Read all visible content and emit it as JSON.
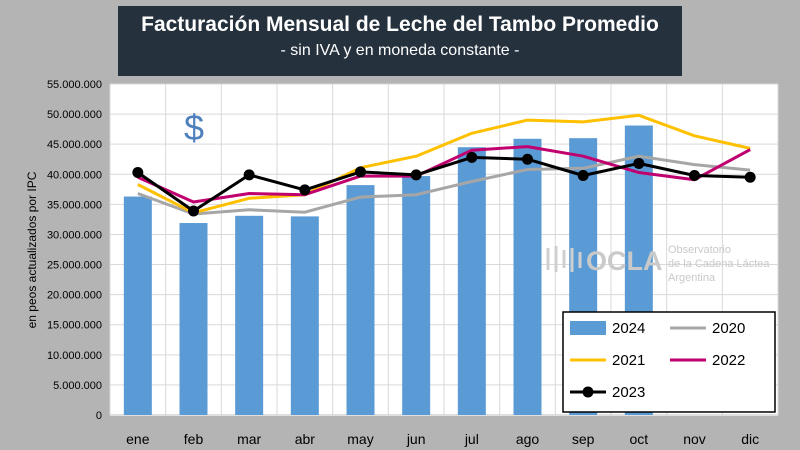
{
  "header": {
    "title": "Facturación Mensual de Leche del Tambo Promedio",
    "subtitle": "- sin IVA y en moneda constante -"
  },
  "watermark": {
    "name": "OCLA",
    "line1": "Observatorio",
    "line2": "de la Cadena Láctea",
    "line3": "Argentina"
  },
  "symbol": "$",
  "chart_data": {
    "type": "bar+line",
    "ylabel": "en peos actualizados por IPC",
    "ylim": [
      0,
      55000000
    ],
    "ytick_values": [
      0,
      5000000,
      10000000,
      15000000,
      20000000,
      25000000,
      30000000,
      35000000,
      40000000,
      45000000,
      50000000,
      55000000
    ],
    "ytick_labels": [
      "0",
      "5.000.000",
      "10.000.000",
      "15.000.000",
      "20.000.000",
      "25.000.000",
      "30.000.000",
      "35.000.000",
      "40.000.000",
      "45.000.000",
      "50.000.000",
      "55.000.000"
    ],
    "categories": [
      "ene",
      "feb",
      "mar",
      "abr",
      "may",
      "jun",
      "jul",
      "ago",
      "sep",
      "oct",
      "nov",
      "dic"
    ],
    "bar_series": {
      "name": "2024",
      "color": "#5b9bd5",
      "values": [
        36300000,
        31900000,
        33100000,
        33000000,
        38200000,
        39700000,
        44500000,
        45900000,
        46000000,
        48100000,
        null,
        null
      ]
    },
    "line_series": [
      {
        "name": "2020",
        "color": "#a6a6a6",
        "values": [
          36800000,
          33400000,
          34100000,
          33700000,
          36200000,
          36600000,
          38800000,
          40800000,
          41000000,
          43000000,
          41600000,
          40700000
        ]
      },
      {
        "name": "2021",
        "color": "#ffc000",
        "values": [
          38300000,
          33600000,
          36000000,
          36600000,
          41100000,
          43000000,
          46800000,
          49000000,
          48700000,
          49800000,
          46400000,
          44300000
        ]
      },
      {
        "name": "2022",
        "color": "#c0006e",
        "values": [
          39500000,
          35400000,
          36800000,
          36600000,
          39700000,
          39700000,
          44000000,
          44600000,
          43000000,
          40300000,
          39100000,
          44100000
        ]
      },
      {
        "name": "2023",
        "color": "#000000",
        "values": [
          40300000,
          33900000,
          39900000,
          37400000,
          40400000,
          39900000,
          42800000,
          42500000,
          39800000,
          41800000,
          39800000,
          39500000
        ],
        "markers": true
      }
    ],
    "legend": {
      "placement": "bottom-right",
      "entries": [
        "2024",
        "2020",
        "2021",
        "2022",
        "2023"
      ]
    }
  }
}
